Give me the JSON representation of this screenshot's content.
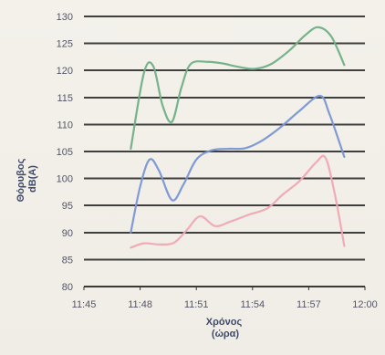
{
  "chart_data": {
    "type": "line",
    "title": "",
    "ylabel": "Θόρυβος\ndB(A)",
    "xlabel": "Χρόνος\n(ώρα)",
    "ylim": [
      80,
      130
    ],
    "yticks": [
      80,
      85,
      90,
      95,
      100,
      105,
      110,
      115,
      120,
      125,
      130
    ],
    "xlim_minutes": [
      705,
      720
    ],
    "xtick_labels": [
      "11:45",
      "11:48",
      "11:51",
      "11:54",
      "11:57",
      "12:00"
    ],
    "grid": true,
    "legend": "none",
    "series": [
      {
        "color": "#6fae87",
        "points": [
          [
            707.5,
            105.5
          ],
          [
            708.2,
            119.5
          ],
          [
            708.7,
            120.8
          ],
          [
            709.2,
            113.5
          ],
          [
            709.7,
            110.5
          ],
          [
            710.2,
            116.8
          ],
          [
            710.7,
            121.2
          ],
          [
            711.6,
            121.6
          ],
          [
            712.4,
            121.3
          ],
          [
            713.2,
            120.7
          ],
          [
            714.1,
            120.3
          ],
          [
            715.0,
            121.2
          ],
          [
            716.0,
            123.8
          ],
          [
            716.8,
            126.5
          ],
          [
            717.5,
            128.0
          ],
          [
            718.2,
            126.3
          ],
          [
            718.9,
            121.0
          ]
        ]
      },
      {
        "color": "#7a95d4",
        "points": [
          [
            707.5,
            90.0
          ],
          [
            708.0,
            98.5
          ],
          [
            708.5,
            103.5
          ],
          [
            709.0,
            101.5
          ],
          [
            709.7,
            96.0
          ],
          [
            710.3,
            98.8
          ],
          [
            711.0,
            103.5
          ],
          [
            711.8,
            105.2
          ],
          [
            712.7,
            105.5
          ],
          [
            713.6,
            105.6
          ],
          [
            714.5,
            107.0
          ],
          [
            715.5,
            109.5
          ],
          [
            716.5,
            112.5
          ],
          [
            717.6,
            115.3
          ],
          [
            718.1,
            112.0
          ],
          [
            718.9,
            104.0
          ]
        ]
      },
      {
        "color": "#f0a6b3",
        "points": [
          [
            707.5,
            87.2
          ],
          [
            708.2,
            88.0
          ],
          [
            709.0,
            87.8
          ],
          [
            709.8,
            88.1
          ],
          [
            710.5,
            90.5
          ],
          [
            711.2,
            93.0
          ],
          [
            712.0,
            91.2
          ],
          [
            712.8,
            92.0
          ],
          [
            713.8,
            93.3
          ],
          [
            714.8,
            94.5
          ],
          [
            715.6,
            97.0
          ],
          [
            716.5,
            99.5
          ],
          [
            717.4,
            103.0
          ],
          [
            717.9,
            103.8
          ],
          [
            718.4,
            97.0
          ],
          [
            718.9,
            87.5
          ]
        ]
      }
    ]
  }
}
